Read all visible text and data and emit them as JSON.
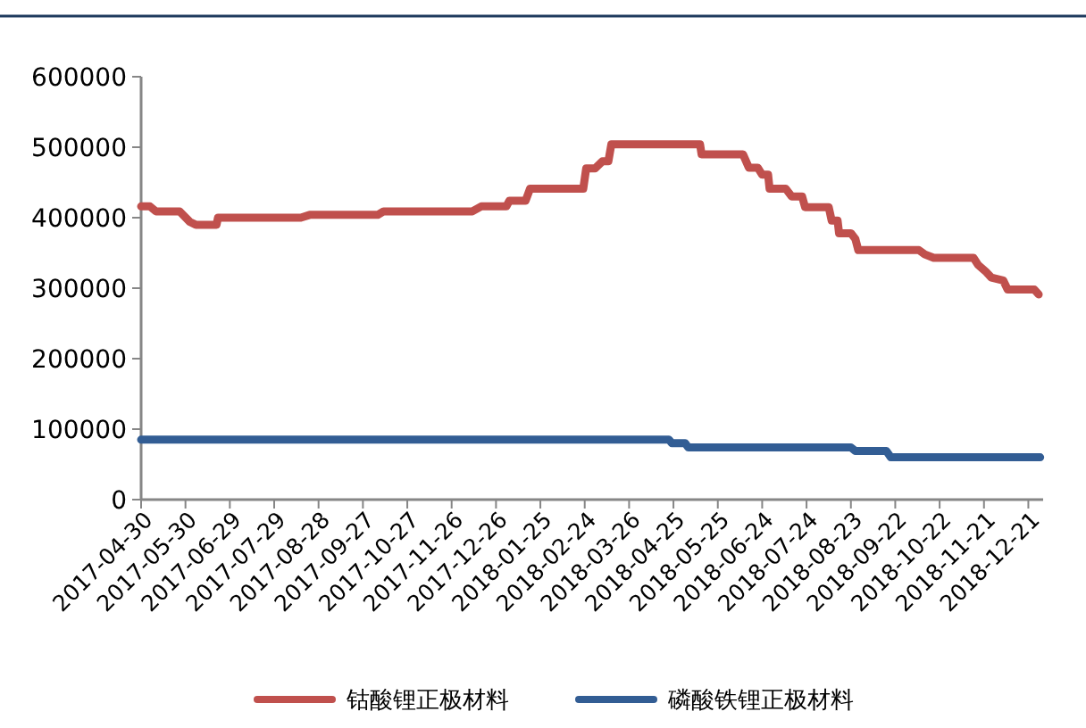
{
  "chart_data": {
    "type": "line",
    "legend": "bottom",
    "grid": false,
    "line_style": "solid",
    "xlim": [
      "2017-04-30",
      "2018-12-31"
    ],
    "xticks": [
      "2017-04-30",
      "2017-05-30",
      "2017-06-29",
      "2017-07-29",
      "2017-08-28",
      "2017-09-27",
      "2017-10-27",
      "2017-11-26",
      "2017-12-26",
      "2018-01-25",
      "2018-02-24",
      "2018-03-26",
      "2018-04-25",
      "2018-05-25",
      "2018-06-24",
      "2018-07-24",
      "2018-08-23",
      "2018-09-22",
      "2018-10-22",
      "2018-11-21",
      "2018-12-21"
    ],
    "ylim": [
      0,
      600000
    ],
    "yticks": [
      0,
      100000,
      200000,
      300000,
      400000,
      500000,
      600000
    ],
    "series": [
      {
        "name": "钴酸锂正极材料",
        "color": "#c0504d",
        "x": [
          "2017-04-30",
          "2017-05-06",
          "2017-05-10",
          "2017-05-26",
          "2017-06-02",
          "2017-06-06",
          "2017-06-20",
          "2017-06-21",
          "2017-08-16",
          "2017-08-22",
          "2017-10-07",
          "2017-10-11",
          "2017-12-10",
          "2017-12-16",
          "2018-01-02",
          "2018-01-04",
          "2018-01-15",
          "2018-01-18",
          "2018-02-23",
          "2018-02-25",
          "2018-03-03",
          "2018-03-08",
          "2018-03-12",
          "2018-03-14",
          "2018-05-13",
          "2018-05-14",
          "2018-06-11",
          "2018-06-15",
          "2018-06-21",
          "2018-06-24",
          "2018-06-28",
          "2018-06-29",
          "2018-07-10",
          "2018-07-14",
          "2018-07-21",
          "2018-07-23",
          "2018-08-08",
          "2018-08-10",
          "2018-08-14",
          "2018-08-15",
          "2018-08-23",
          "2018-08-26",
          "2018-08-28",
          "2018-10-08",
          "2018-10-12",
          "2018-10-18",
          "2018-11-14",
          "2018-11-17",
          "2018-11-22",
          "2018-11-26",
          "2018-12-04",
          "2018-12-07",
          "2018-12-25",
          "2018-12-28"
        ],
        "values": [
          416000,
          416000,
          409000,
          409000,
          394000,
          390000,
          390000,
          400000,
          400000,
          404000,
          404000,
          409000,
          409000,
          416000,
          416000,
          424000,
          424000,
          441000,
          441000,
          470000,
          470000,
          480000,
          480000,
          504000,
          504000,
          490000,
          490000,
          471000,
          471000,
          461000,
          461000,
          441000,
          441000,
          430000,
          430000,
          415000,
          415000,
          396000,
          396000,
          378000,
          378000,
          370000,
          354000,
          354000,
          348000,
          343000,
          343000,
          333000,
          324000,
          315000,
          311000,
          298000,
          298000,
          291000
        ]
      },
      {
        "name": "磷酸铁锂正极材料",
        "color": "#325d94",
        "x": [
          "2017-04-30",
          "2018-04-22",
          "2018-04-24",
          "2018-05-03",
          "2018-05-05",
          "2018-08-23",
          "2018-08-26",
          "2018-09-16",
          "2018-09-19",
          "2018-12-29"
        ],
        "values": [
          85000,
          85000,
          80000,
          80000,
          74000,
          74000,
          69000,
          69000,
          60000,
          60000
        ]
      }
    ]
  }
}
